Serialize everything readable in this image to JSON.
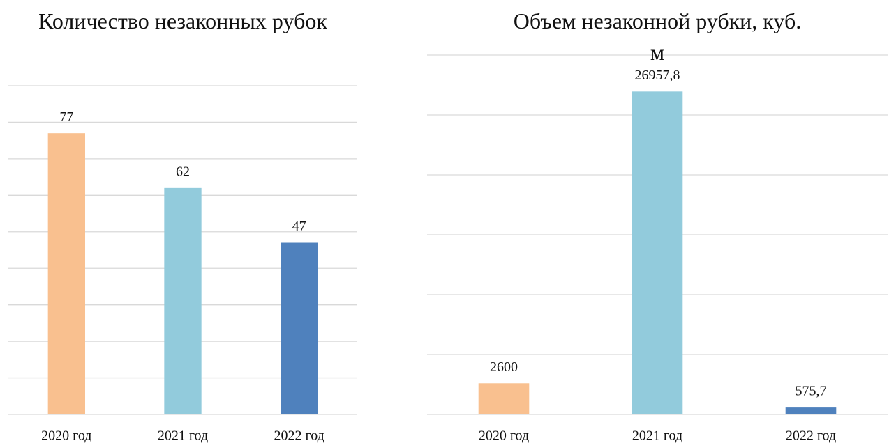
{
  "chart_data": [
    {
      "type": "bar",
      "title": "Количество незаконных рубок",
      "categories": [
        "2020 год",
        "2021 год",
        "2022 год"
      ],
      "values": [
        77,
        62,
        47
      ],
      "colors": [
        "#f9c08f",
        "#92cbdc",
        "#4f81bd"
      ],
      "ylim": [
        0,
        90
      ],
      "yticks": [
        0,
        10,
        20,
        30,
        40,
        50,
        60,
        70,
        80,
        90
      ],
      "grid": true
    },
    {
      "type": "bar",
      "title": "Объем незаконной рубки, куб. м",
      "categories": [
        "2020 год",
        "2021 год",
        "2022 год"
      ],
      "values": [
        2600,
        26957.8,
        575.7
      ],
      "value_labels": [
        "2600",
        "26957,8",
        "575,7"
      ],
      "colors": [
        "#f9c08f",
        "#92cbdc",
        "#4f81bd"
      ],
      "ylim": [
        0,
        30000
      ],
      "yticks": [
        0,
        5000,
        10000,
        15000,
        20000,
        25000,
        30000
      ],
      "grid": true
    }
  ]
}
